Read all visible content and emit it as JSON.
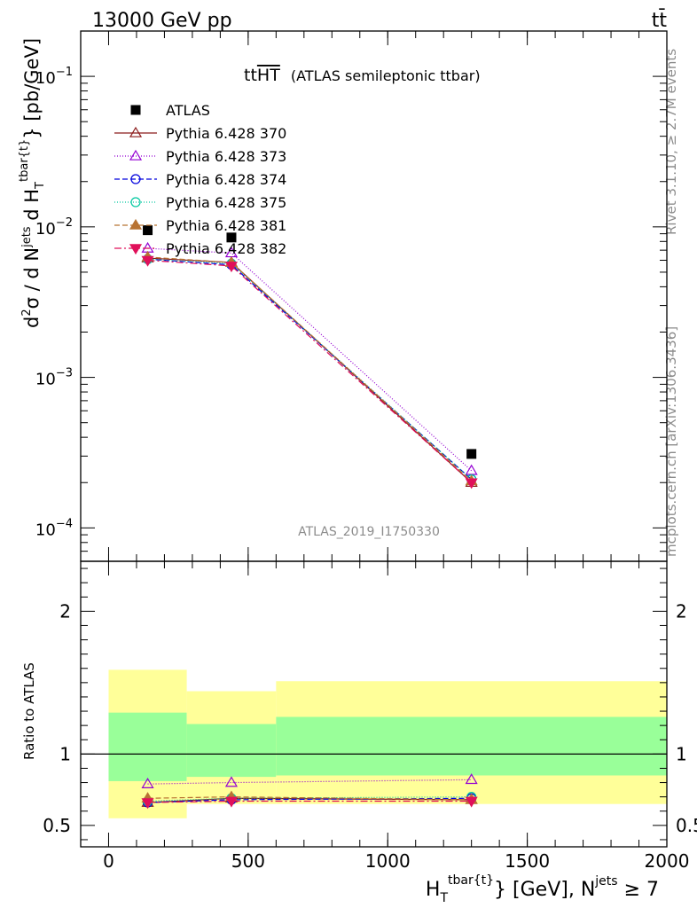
{
  "header": {
    "energy_label": "13000 GeV pp",
    "process_label": "tt̄",
    "rivet_label": "Rivet 3.1.10, ≥ 2.7M events",
    "mcplots_label": "mcplots.cern.ch [arXiv:1306.3436]"
  },
  "chart_data": [
    {
      "type": "scatter",
      "title_main": "tt",
      "title_overline": "HT",
      "title_sub": "(ATLAS semileptonic ttbar)",
      "analysis_label": "ATLAS_2019_I1750330",
      "ylabel": "d²σ / d N^jets d H_T^tbar{t} [pb/GeV]",
      "ylabel_parts": {
        "a": "d",
        "b": "2",
        "c": "σ / d N",
        "d": "jets",
        "e": " d H",
        "f": "T",
        "g": "tbar{t}",
        "h": "} [pb/GeV]"
      },
      "yscale": "log",
      "ylim": [
        6e-05,
        0.2
      ],
      "xlim": [
        -100,
        2000
      ],
      "yticks": [
        {
          "v": 0.1,
          "base": "10",
          "exp": "−1"
        },
        {
          "v": 0.01,
          "base": "10",
          "exp": "−2"
        },
        {
          "v": 0.001,
          "base": "10",
          "exp": "−3"
        },
        {
          "v": 0.0001,
          "base": "10",
          "exp": "−4"
        }
      ],
      "x": [
        140,
        440,
        1300
      ],
      "data": {
        "name": "ATLAS",
        "color": "#000000",
        "y": [
          0.0095,
          0.0085,
          0.00031
        ]
      },
      "series": [
        {
          "name": "Pythia 6.428 370",
          "color": "#8b1a1a",
          "dash": "",
          "marker": "triangle-open",
          "y": [
            0.0062,
            0.0058,
            0.0002
          ]
        },
        {
          "name": "Pythia 6.428 373",
          "color": "#9400d3",
          "dash": "1,2",
          "marker": "triangle-open",
          "y": [
            0.0072,
            0.0067,
            0.00024
          ]
        },
        {
          "name": "Pythia 6.428 374",
          "color": "#0000dd",
          "dash": "6,3",
          "marker": "circle-open",
          "y": [
            0.0061,
            0.0056,
            0.00021
          ]
        },
        {
          "name": "Pythia 6.428 375",
          "color": "#00c8a0",
          "dash": "1,2",
          "marker": "circle-open",
          "y": [
            0.0061,
            0.0057,
            0.00021
          ]
        },
        {
          "name": "Pythia 6.428 381",
          "color": "#b87333",
          "dash": "6,3",
          "marker": "triangle-filled",
          "y": [
            0.0063,
            0.0058,
            0.000205
          ]
        },
        {
          "name": "Pythia 6.428 382",
          "color": "#e0105a",
          "dash": "8,3,2,3",
          "marker": "triangle-down-filled",
          "y": [
            0.006,
            0.0055,
            0.0002
          ]
        }
      ]
    },
    {
      "type": "scatter",
      "ylabel": "Ratio to ATLAS",
      "xlabel_parts": {
        "a": "H",
        "b": "T",
        "c": "tbar{t}",
        "d": "} [GeV], N",
        "e": "jets",
        "f": " ≥ 7"
      },
      "ylim": [
        0.35,
        2.35
      ],
      "xlim": [
        -100,
        2000
      ],
      "yticks": [
        {
          "v": 0.5,
          "label": "0.5"
        },
        {
          "v": 1,
          "label": "1"
        },
        {
          "v": 2,
          "label": "2"
        }
      ],
      "xticks": [
        {
          "v": 0,
          "label": "0"
        },
        {
          "v": 500,
          "label": "500"
        },
        {
          "v": 1000,
          "label": "1000"
        },
        {
          "v": 1500,
          "label": "1500"
        },
        {
          "v": 2000,
          "label": "2000"
        }
      ],
      "bands": [
        {
          "x0": 0,
          "x1": 280,
          "yellow": [
            0.55,
            1.59
          ],
          "green": [
            0.81,
            1.29
          ]
        },
        {
          "x0": 280,
          "x1": 600,
          "yellow": [
            0.65,
            1.44
          ],
          "green": [
            0.84,
            1.21
          ]
        },
        {
          "x0": 600,
          "x1": 2000,
          "yellow": [
            0.65,
            1.51
          ],
          "green": [
            0.85,
            1.26
          ]
        }
      ],
      "x": [
        140,
        440,
        1300
      ],
      "series_ratios": [
        [
          0.66,
          0.69,
          0.68
        ],
        [
          0.79,
          0.8,
          0.82
        ],
        [
          0.66,
          0.68,
          0.69
        ],
        [
          0.67,
          0.69,
          0.7
        ],
        [
          0.69,
          0.7,
          0.68
        ],
        [
          0.66,
          0.67,
          0.67
        ]
      ]
    }
  ]
}
